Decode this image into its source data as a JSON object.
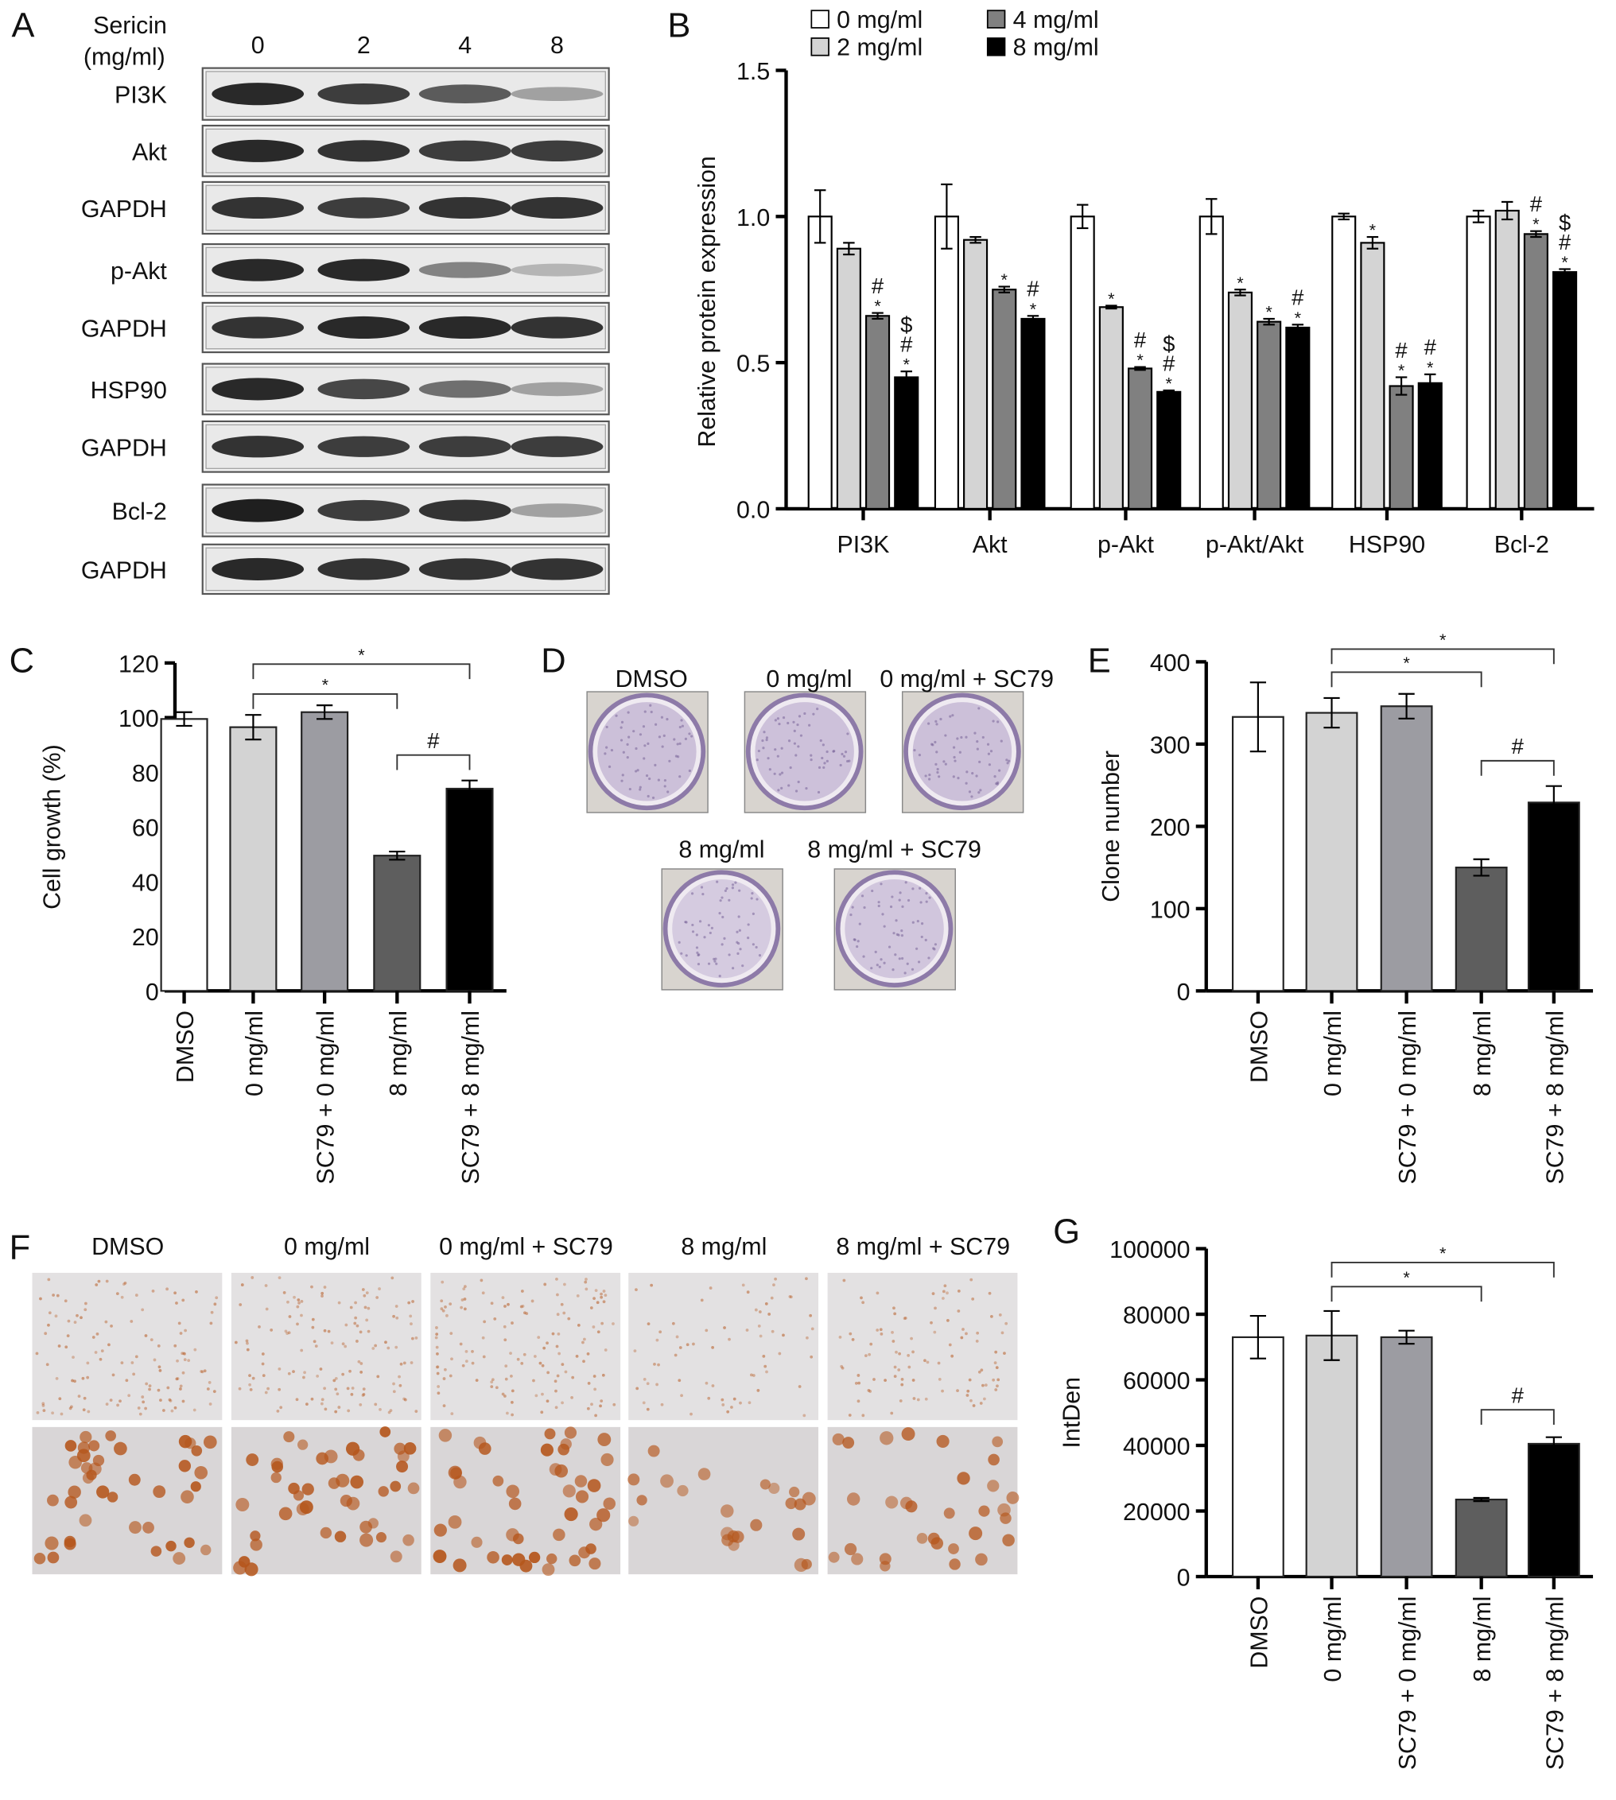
{
  "panel_labels": {
    "A": "A",
    "B": "B",
    "C": "C",
    "D": "D",
    "E": "E",
    "F": "F",
    "G": "G"
  },
  "blot": {
    "header_label_1": "Sericin",
    "header_label_2": "(mg/ml)",
    "lanes": [
      "0",
      "2",
      "4",
      "8"
    ],
    "rows": [
      {
        "label": "PI3K",
        "intensity": [
          0.95,
          0.85,
          0.7,
          0.35
        ]
      },
      {
        "label": "Akt",
        "intensity": [
          0.95,
          0.9,
          0.85,
          0.85
        ]
      },
      {
        "label": "GAPDH",
        "intensity": [
          0.9,
          0.85,
          0.9,
          0.9
        ]
      },
      {
        "label": "p-Akt",
        "intensity": [
          0.95,
          0.95,
          0.5,
          0.25
        ]
      },
      {
        "label": "GAPDH",
        "intensity": [
          0.9,
          0.95,
          0.95,
          0.9
        ]
      },
      {
        "label": "HSP90",
        "intensity": [
          0.95,
          0.8,
          0.6,
          0.35
        ]
      },
      {
        "label": "GAPDH",
        "intensity": [
          0.9,
          0.85,
          0.85,
          0.85
        ]
      },
      {
        "label": "Bcl-2",
        "intensity": [
          1.0,
          0.85,
          0.9,
          0.35
        ]
      },
      {
        "label": "GAPDH",
        "intensity": [
          0.95,
          0.9,
          0.9,
          0.9
        ]
      }
    ]
  },
  "colony": {
    "labels": [
      "DMSO",
      "0 mg/ml",
      "0 mg/ml + SC79",
      "8 mg/ml",
      "8 mg/ml + SC79"
    ],
    "stain_color": "#a48fbf"
  },
  "ihc": {
    "labels": [
      "DMSO",
      "0 mg/ml",
      "0 mg/ml + SC79",
      "8 mg/ml",
      "8 mg/ml + SC79"
    ],
    "cell_density": [
      0.9,
      0.95,
      1.0,
      0.5,
      0.7
    ],
    "cell_color": "#b5561c"
  },
  "chart_data": [
    {
      "id": "B",
      "type": "bar",
      "ylabel": "Relative protein expression",
      "ylim": [
        0,
        1.5
      ],
      "yticks": [
        "0.0",
        "0.5",
        "1.0",
        "1.5"
      ],
      "categories": [
        "PI3K",
        "Akt",
        "p-Akt",
        "p-Akt/Akt",
        "HSP90",
        "Bcl-2"
      ],
      "legend_position": "top",
      "series": [
        {
          "name": "0 mg/ml",
          "color": "#ffffff",
          "values": [
            1.0,
            1.0,
            1.0,
            1.0,
            1.0,
            1.0
          ],
          "errors": [
            0.09,
            0.11,
            0.04,
            0.06,
            0.01,
            0.02
          ],
          "marks": [
            [],
            [],
            [],
            [],
            [],
            []
          ]
        },
        {
          "name": "2 mg/ml",
          "color": "#d4d4d4",
          "values": [
            0.89,
            0.92,
            0.69,
            0.74,
            0.91,
            1.02
          ],
          "errors": [
            0.02,
            0.01,
            0.005,
            0.01,
            0.02,
            0.03
          ],
          "marks": [
            [],
            [],
            [
              "*"
            ],
            [
              "*"
            ],
            [
              "*"
            ],
            []
          ]
        },
        {
          "name": "4 mg/ml",
          "color": "#808080",
          "values": [
            0.66,
            0.75,
            0.48,
            0.64,
            0.42,
            0.94
          ],
          "errors": [
            0.01,
            0.01,
            0.005,
            0.01,
            0.03,
            0.01
          ],
          "marks": [
            [
              "*",
              "#"
            ],
            [
              "*"
            ],
            [
              "*",
              "#"
            ],
            [
              "*"
            ],
            [
              "*",
              "#"
            ],
            [
              "*",
              "#"
            ]
          ]
        },
        {
          "name": "8 mg/ml",
          "color": "#000000",
          "values": [
            0.45,
            0.65,
            0.4,
            0.62,
            0.43,
            0.81
          ],
          "errors": [
            0.02,
            0.01,
            0.005,
            0.01,
            0.03,
            0.01
          ],
          "marks": [
            [
              "*",
              "#",
              "$"
            ],
            [
              "*",
              "#"
            ],
            [
              "*",
              "#",
              "$"
            ],
            [
              "*",
              "#"
            ],
            [
              "*",
              "#"
            ],
            [
              "*",
              "#",
              "$"
            ]
          ]
        }
      ]
    },
    {
      "id": "C",
      "type": "bar",
      "ylabel": "Cell growth (%)",
      "ylim": [
        0,
        120
      ],
      "yticks": [
        "0",
        "20",
        "40",
        "60",
        "80",
        "100",
        "120"
      ],
      "categories": [
        "DMSO",
        "0 mg/ml",
        "SC79 + 0 mg/ml",
        "8 mg/ml",
        "SC79 + 8 mg/ml"
      ],
      "colors": [
        "#ffffff",
        "#d3d3d3",
        "#9c9ca2",
        "#5e5e5e",
        "#000000"
      ],
      "values": [
        99.5,
        96.5,
        102,
        49.5,
        74
      ],
      "errors": [
        2.5,
        4.5,
        2.5,
        1.5,
        3
      ],
      "significance": [
        {
          "from": 1,
          "to": 3,
          "label": "*",
          "level": 1
        },
        {
          "from": 1,
          "to": 4,
          "label": "*",
          "level": 2
        },
        {
          "from": 3,
          "to": 4,
          "label": "#",
          "level": 0
        }
      ]
    },
    {
      "id": "E",
      "type": "bar",
      "ylabel": "Clone number",
      "ylim": [
        0,
        400
      ],
      "yticks": [
        "0",
        "100",
        "200",
        "300",
        "400"
      ],
      "categories": [
        "DMSO",
        "0 mg/ml",
        "SC79 + 0 mg/ml",
        "8 mg/ml",
        "SC79 + 8 mg/ml"
      ],
      "colors": [
        "#ffffff",
        "#d3d3d3",
        "#9c9ca2",
        "#5e5e5e",
        "#000000"
      ],
      "values": [
        333,
        338,
        346,
        150,
        229
      ],
      "errors": [
        42,
        18,
        15,
        10,
        20
      ],
      "significance": [
        {
          "from": 1,
          "to": 3,
          "label": "*",
          "level": 1
        },
        {
          "from": 1,
          "to": 4,
          "label": "*",
          "level": 2
        },
        {
          "from": 3,
          "to": 4,
          "label": "#",
          "level": 0
        }
      ]
    },
    {
      "id": "G",
      "type": "bar",
      "ylabel": "IntDen",
      "ylim": [
        0,
        100000
      ],
      "yticks": [
        "0",
        "20000",
        "40000",
        "60000",
        "80000",
        "100000"
      ],
      "categories": [
        "DMSO",
        "0 mg/ml",
        "SC79 + 0 mg/ml",
        "8 mg/ml",
        "SC79 + 8 mg/ml"
      ],
      "colors": [
        "#ffffff",
        "#d3d3d3",
        "#9c9ca2",
        "#5e5e5e",
        "#000000"
      ],
      "values": [
        73000,
        73500,
        73000,
        23500,
        40500
      ],
      "errors": [
        6500,
        7500,
        2000,
        500,
        2000
      ],
      "significance": [
        {
          "from": 1,
          "to": 3,
          "label": "*",
          "level": 1
        },
        {
          "from": 1,
          "to": 4,
          "label": "*",
          "level": 2
        },
        {
          "from": 3,
          "to": 4,
          "label": "#",
          "level": 0
        }
      ]
    }
  ]
}
